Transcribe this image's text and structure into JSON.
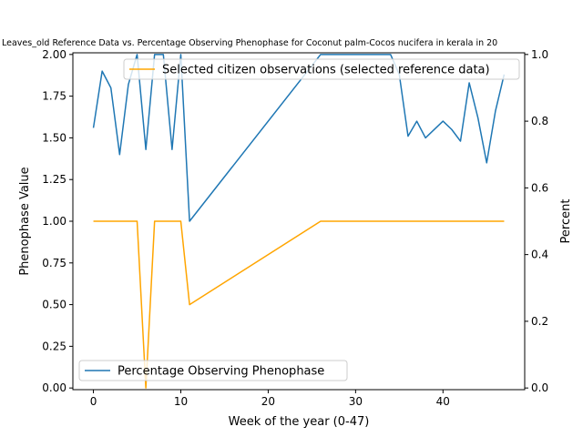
{
  "chart_data": {
    "type": "line",
    "title": "Leaves_old Reference Data vs. Percentage Observing Phenophase for Coconut palm-Cocos nucifera in kerala in 20",
    "xlabel": "Week of the year (0-47)",
    "ylabel_left": "Phenophase Value",
    "ylabel_right": "Percent",
    "xlim": [
      -2.35,
      49.35
    ],
    "ylim_left": [
      -0.01,
      2.01
    ],
    "ylim_right": [
      -0.005,
      1.005
    ],
    "x_ticks": [
      0,
      10,
      20,
      30,
      40
    ],
    "y_ticks_left": [
      "0.00",
      "0.25",
      "0.50",
      "0.75",
      "1.00",
      "1.25",
      "1.50",
      "1.75",
      "2.00"
    ],
    "y_ticks_right": [
      "0.0",
      "0.2",
      "0.4",
      "0.6",
      "0.8",
      "1.0"
    ],
    "grid": false,
    "series": [
      {
        "name": "Selected citizen observations (selected reference data)",
        "axis": "left",
        "color": "#ffa500",
        "legend_position": "upper right",
        "x": [
          0,
          5,
          6,
          7,
          10,
          11,
          26,
          47
        ],
        "y": [
          1.0,
          1.0,
          0.0,
          1.0,
          1.0,
          0.5,
          1.0,
          1.0
        ]
      },
      {
        "name": "Percentage Observing Phenophase",
        "axis": "right",
        "color": "#1f77b4",
        "legend_position": "lower left",
        "x": [
          0,
          1,
          2,
          3,
          4,
          5,
          6,
          7,
          8,
          9,
          10,
          11,
          26,
          34,
          35,
          36,
          37,
          38,
          40,
          41,
          42,
          43,
          44,
          45,
          46,
          47
        ],
        "y": [
          0.78,
          0.95,
          0.9,
          0.7,
          0.91,
          1.0,
          0.715,
          1.0,
          1.0,
          0.715,
          1.0,
          0.5,
          1.0,
          1.0,
          0.94,
          0.755,
          0.8,
          0.75,
          0.8,
          0.775,
          0.74,
          0.915,
          0.81,
          0.675,
          0.83,
          0.94
        ]
      }
    ]
  }
}
